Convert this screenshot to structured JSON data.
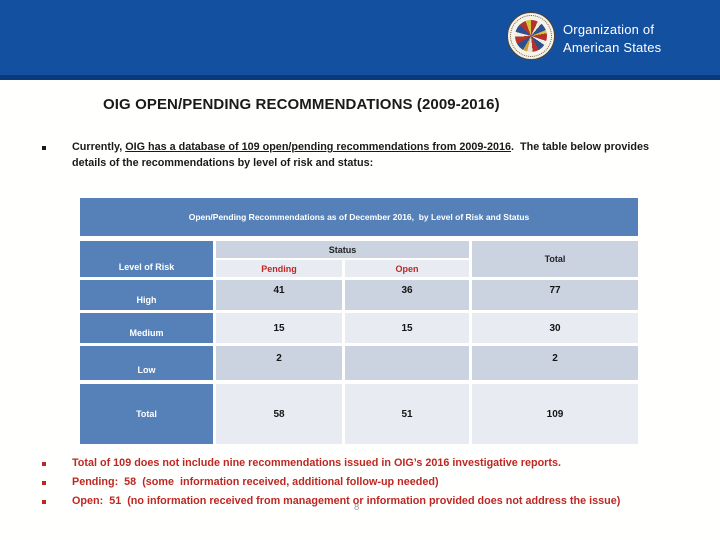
{
  "banner": {
    "org_name_line1": "Organization of",
    "org_name_line2": "American States",
    "bg_color": "#1450A0",
    "strip_color": "#0b3a7c",
    "logo_icon": "oas-seal-icon"
  },
  "slide": {
    "title": "OIG OPEN/PENDING RECOMMENDATIONS (2009-2016)",
    "intro": {
      "pre": "Currently, ",
      "underlined": "OIG has a database of 109 open/pending recommendations from 2009-2016",
      "post": ".  The table below provides details of the recommendations by level of risk and status:"
    },
    "page_number": "8"
  },
  "table": {
    "caption": "Open/Pending Recommendations as of December 2016,  by Level of Risk and Status",
    "header": {
      "level_of_risk": "Level of Risk",
      "status": "Status",
      "pending": "Pending",
      "open": "Open",
      "total": "Total"
    },
    "rows": [
      {
        "label": "High",
        "pending": "41",
        "open": "36",
        "total": "77"
      },
      {
        "label": "Medium",
        "pending": "15",
        "open": "15",
        "total": "30"
      },
      {
        "label": "Low",
        "pending": "2",
        "open": "",
        "total": "2"
      },
      {
        "label": "Total",
        "pending": "58",
        "open": "51",
        "total": "109"
      }
    ],
    "colors": {
      "label_blue": "#5581B8",
      "cell_dark": "#CBD2E0",
      "cell_light": "#E9EBF2",
      "status_red": "#BE2722"
    }
  },
  "footnotes": [
    {
      "text": "Total of 109 does not include nine recommendations issued in OIG’s 2016 investigative reports."
    },
    {
      "text": "Pending:  58  (some  information received, additional follow-up needed)"
    },
    {
      "text": "Open:  51  (no information received from management or information provided does not address the issue)"
    }
  ]
}
